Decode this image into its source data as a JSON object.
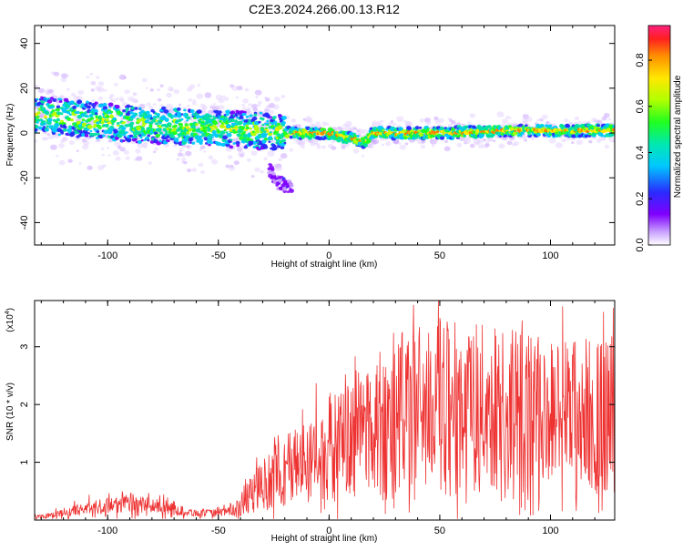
{
  "title": "C2E3.2024.266.00.13.R12",
  "chart_data": [
    {
      "type": "heatmap",
      "xlabel": "Height of straight line (km)",
      "ylabel": "Frequency (Hz)",
      "xlim": [
        -133,
        129
      ],
      "ylim": [
        -50,
        48
      ],
      "xticks": [
        -100,
        -50,
        0,
        50,
        100
      ],
      "yticks": [
        -40,
        -20,
        0,
        20,
        40
      ],
      "colorbar": {
        "label": "Normalized spectral amplitude",
        "range": [
          0,
          0.95
        ],
        "ticks": [
          0.0,
          0.2,
          0.4,
          0.6,
          0.8
        ]
      },
      "ridge": [
        {
          "x": -130,
          "y": 8
        },
        {
          "x": -110,
          "y": 6
        },
        {
          "x": -90,
          "y": 4
        },
        {
          "x": -70,
          "y": 3
        },
        {
          "x": -50,
          "y": 2
        },
        {
          "x": -30,
          "y": 1
        },
        {
          "x": -20,
          "y": 0
        },
        {
          "x": 0,
          "y": 0
        },
        {
          "x": 16,
          "y": -4
        },
        {
          "x": 20,
          "y": 0
        },
        {
          "x": 50,
          "y": 0
        },
        {
          "x": 80,
          "y": 1
        },
        {
          "x": 129,
          "y": 1
        }
      ],
      "tail": [
        {
          "x": -27,
          "y": -15
        },
        {
          "x": -24,
          "y": -22
        },
        {
          "x": -17,
          "y": -24
        }
      ]
    },
    {
      "type": "line",
      "xlabel": "Height of straight line (km)",
      "ylabel": "SNR (10 * v/v)",
      "ylabel_scale": "(x10",
      "ylabel_exp": "4",
      "xlim": [
        -133,
        129
      ],
      "ylim": [
        0,
        3.8
      ],
      "xticks": [
        -100,
        -50,
        0,
        50,
        100
      ],
      "yticks": [
        1,
        2,
        3
      ],
      "series": [
        {
          "color": "#ee3333",
          "envelope_x": [
            -133,
            -120,
            -110,
            -100,
            -90,
            -80,
            -70,
            -60,
            -50,
            -45,
            -40,
            -35,
            -30,
            -25,
            -20,
            -15,
            -10,
            -5,
            0,
            5,
            10,
            15,
            20,
            25,
            30,
            35,
            40,
            45,
            50,
            55,
            60,
            65,
            70,
            75,
            80,
            85,
            90,
            95,
            100,
            105,
            110,
            115,
            120,
            125,
            129
          ],
          "envelope_y": [
            0.05,
            0.12,
            0.2,
            0.25,
            0.3,
            0.25,
            0.18,
            0.12,
            0.12,
            0.15,
            0.25,
            0.45,
            0.6,
            0.75,
            0.85,
            0.95,
            1.05,
            1.15,
            1.25,
            1.35,
            1.45,
            1.55,
            1.65,
            1.7,
            1.8,
            1.9,
            1.95,
            2.0,
            2.0,
            2.0,
            2.0,
            1.95,
            1.95,
            1.9,
            1.9,
            1.9,
            1.85,
            1.85,
            1.85,
            1.85,
            1.85,
            1.85,
            1.85,
            1.8,
            1.8
          ]
        }
      ]
    }
  ]
}
